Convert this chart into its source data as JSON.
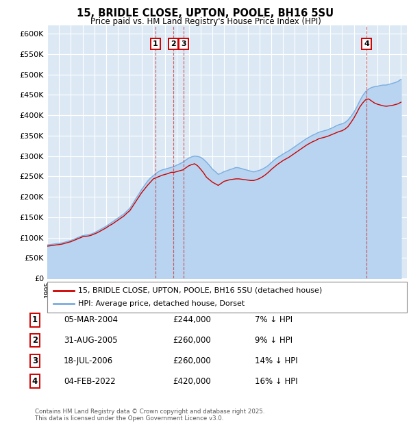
{
  "title": "15, BRIDLE CLOSE, UPTON, POOLE, BH16 5SU",
  "subtitle": "Price paid vs. HM Land Registry's House Price Index (HPI)",
  "plot_bg_color": "#dce9f5",
  "ylim": [
    0,
    620000
  ],
  "yticks": [
    0,
    50000,
    100000,
    150000,
    200000,
    250000,
    300000,
    350000,
    400000,
    450000,
    500000,
    550000,
    600000
  ],
  "legend_label_red": "15, BRIDLE CLOSE, UPTON, POOLE, BH16 5SU (detached house)",
  "legend_label_blue": "HPI: Average price, detached house, Dorset",
  "footer": "Contains HM Land Registry data © Crown copyright and database right 2025.\nThis data is licensed under the Open Government Licence v3.0.",
  "transactions": [
    {
      "num": 1,
      "date": "05-MAR-2004",
      "price": "£244,000",
      "pct": "7% ↓ HPI",
      "year": 2004.17
    },
    {
      "num": 2,
      "date": "31-AUG-2005",
      "price": "£260,000",
      "pct": "9% ↓ HPI",
      "year": 2005.67
    },
    {
      "num": 3,
      "date": "18-JUL-2006",
      "price": "£260,000",
      "pct": "14% ↓ HPI",
      "year": 2006.54
    },
    {
      "num": 4,
      "date": "04-FEB-2022",
      "price": "£420,000",
      "pct": "16% ↓ HPI",
      "year": 2022.09
    }
  ],
  "red_color": "#cc0000",
  "blue_color": "#7aade0",
  "blue_fill_color": "#b8d4f0",
  "xmin": 1995,
  "xmax": 2025.5,
  "years_hpi": [
    1995.0,
    1995.25,
    1995.5,
    1995.75,
    1996.0,
    1996.25,
    1996.5,
    1996.75,
    1997.0,
    1997.25,
    1997.5,
    1997.75,
    1998.0,
    1998.25,
    1998.5,
    1998.75,
    1999.0,
    1999.25,
    1999.5,
    1999.75,
    2000.0,
    2000.25,
    2000.5,
    2000.75,
    2001.0,
    2001.25,
    2001.5,
    2001.75,
    2002.0,
    2002.25,
    2002.5,
    2002.75,
    2003.0,
    2003.25,
    2003.5,
    2003.75,
    2004.0,
    2004.25,
    2004.5,
    2004.75,
    2005.0,
    2005.25,
    2005.5,
    2005.75,
    2006.0,
    2006.25,
    2006.5,
    2006.75,
    2007.0,
    2007.25,
    2007.5,
    2007.75,
    2008.0,
    2008.25,
    2008.5,
    2008.75,
    2009.0,
    2009.25,
    2009.5,
    2009.75,
    2010.0,
    2010.25,
    2010.5,
    2010.75,
    2011.0,
    2011.25,
    2011.5,
    2011.75,
    2012.0,
    2012.25,
    2012.5,
    2012.75,
    2013.0,
    2013.25,
    2013.5,
    2013.75,
    2014.0,
    2014.25,
    2014.5,
    2014.75,
    2015.0,
    2015.25,
    2015.5,
    2015.75,
    2016.0,
    2016.25,
    2016.5,
    2016.75,
    2017.0,
    2017.25,
    2017.5,
    2017.75,
    2018.0,
    2018.25,
    2018.5,
    2018.75,
    2019.0,
    2019.25,
    2019.5,
    2019.75,
    2020.0,
    2020.25,
    2020.5,
    2020.75,
    2021.0,
    2021.25,
    2021.5,
    2021.75,
    2022.0,
    2022.25,
    2022.5,
    2022.75,
    2023.0,
    2023.25,
    2023.5,
    2023.75,
    2024.0,
    2024.25,
    2024.5,
    2024.75,
    2025.0
  ],
  "hpi_values": [
    82000,
    83000,
    84000,
    85000,
    86000,
    87000,
    89000,
    91000,
    93000,
    96000,
    99000,
    102000,
    105000,
    106000,
    107000,
    109000,
    112000,
    116000,
    120000,
    124000,
    128000,
    133000,
    138000,
    143000,
    148000,
    153000,
    158000,
    165000,
    172000,
    183000,
    195000,
    206000,
    218000,
    228000,
    238000,
    246000,
    252000,
    258000,
    263000,
    266000,
    268000,
    270000,
    272000,
    274000,
    278000,
    281000,
    285000,
    290000,
    295000,
    298000,
    300000,
    299000,
    297000,
    292000,
    285000,
    277000,
    268000,
    262000,
    255000,
    258000,
    262000,
    264000,
    267000,
    269000,
    272000,
    271000,
    269000,
    267000,
    265000,
    263000,
    261000,
    263000,
    265000,
    268000,
    272000,
    277000,
    284000,
    290000,
    296000,
    300000,
    305000,
    309000,
    313000,
    318000,
    323000,
    328000,
    333000,
    338000,
    343000,
    347000,
    351000,
    354000,
    358000,
    360000,
    362000,
    364000,
    367000,
    370000,
    374000,
    377000,
    379000,
    382000,
    388000,
    397000,
    407000,
    420000,
    435000,
    448000,
    458000,
    464000,
    468000,
    470000,
    471000,
    473000,
    474000,
    474000,
    476000,
    478000,
    480000,
    483000,
    488000
  ],
  "red_values": [
    79000,
    80000,
    81000,
    82000,
    83000,
    84000,
    86000,
    88000,
    90000,
    93000,
    96000,
    99000,
    102000,
    103000,
    104000,
    106000,
    109000,
    112000,
    116000,
    120000,
    124000,
    129000,
    133000,
    138000,
    143000,
    148000,
    153000,
    160000,
    166000,
    177000,
    188000,
    199000,
    210000,
    219000,
    228000,
    236000,
    244000,
    247000,
    250000,
    253000,
    255000,
    257000,
    260000,
    260000,
    262000,
    264000,
    266000,
    271000,
    276000,
    279000,
    281000,
    276000,
    268000,
    259000,
    248000,
    242000,
    236000,
    232000,
    228000,
    233000,
    238000,
    240000,
    242000,
    243000,
    244000,
    244000,
    243000,
    242000,
    241000,
    240000,
    240000,
    242000,
    245000,
    249000,
    254000,
    260000,
    267000,
    273000,
    279000,
    284000,
    289000,
    293000,
    297000,
    302000,
    307000,
    312000,
    317000,
    322000,
    327000,
    331000,
    335000,
    338000,
    342000,
    344000,
    346000,
    348000,
    351000,
    354000,
    357000,
    360000,
    362000,
    366000,
    372000,
    382000,
    393000,
    406000,
    420000,
    430000,
    438000,
    440000,
    435000,
    430000,
    427000,
    425000,
    423000,
    422000,
    423000,
    424000,
    426000,
    428000,
    432000
  ]
}
